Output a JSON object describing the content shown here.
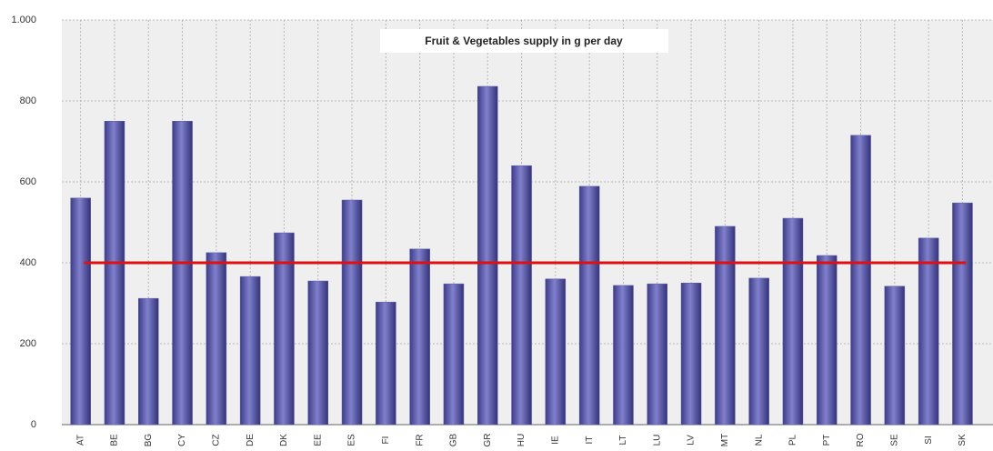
{
  "chart_data": {
    "type": "bar",
    "title": "Fruit & Vegetables supply in g per day",
    "categories": [
      "AT",
      "BE",
      "BG",
      "CY",
      "CZ",
      "DE",
      "DK",
      "EE",
      "ES",
      "FI",
      "FR",
      "GB",
      "GR",
      "HU",
      "IE",
      "IT",
      "LT",
      "LU",
      "LV",
      "MT",
      "NL",
      "PL",
      "PT",
      "RO",
      "SE",
      "SI",
      "SK"
    ],
    "values": [
      560,
      750,
      312,
      750,
      425,
      366,
      474,
      355,
      555,
      303,
      434,
      348,
      836,
      640,
      360,
      589,
      344,
      348,
      350,
      490,
      362,
      510,
      418,
      715,
      342,
      461,
      548
    ],
    "color": "#5a5aaa",
    "reference_line": 400,
    "reference_color": "#e01010",
    "ylim": [
      0,
      1000
    ],
    "yticks": [
      0,
      200,
      400,
      600,
      800,
      {
        "value": 1000,
        "label": "1.000"
      }
    ],
    "grid": true
  }
}
